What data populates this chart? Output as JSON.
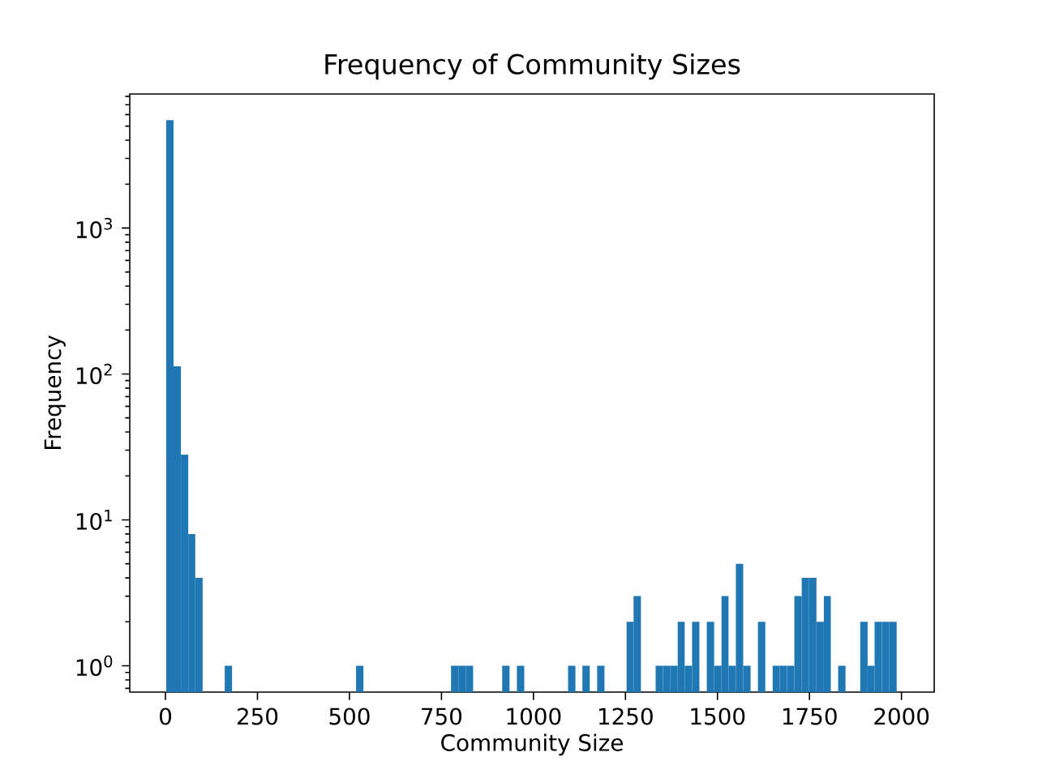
{
  "chart_data": {
    "type": "histogram",
    "title": "Frequency of Community Sizes",
    "xlabel": "Community Size",
    "ylabel": "Frequency",
    "color": "#1f77b4",
    "log": "y",
    "bins": [
      2,
      22,
      42,
      62,
      81,
      101,
      121,
      141,
      161,
      181,
      201,
      220,
      240,
      260,
      280,
      300,
      320,
      339,
      359,
      379,
      399,
      419,
      439,
      459,
      478,
      498,
      518,
      538,
      558,
      578,
      598,
      617,
      637,
      657,
      677,
      697,
      717,
      736,
      756,
      776,
      796,
      816,
      836,
      856,
      875,
      895,
      915,
      935,
      955,
      975,
      995,
      1014,
      1034,
      1054,
      1074,
      1094,
      1114,
      1133,
      1153,
      1173,
      1193,
      1213,
      1233,
      1253,
      1272,
      1292,
      1312,
      1332,
      1352,
      1372,
      1392,
      1411,
      1431,
      1451,
      1471,
      1491,
      1511,
      1530,
      1550,
      1570,
      1590,
      1610,
      1630,
      1650,
      1669,
      1689,
      1709,
      1729,
      1749,
      1769,
      1789,
      1808,
      1828,
      1848,
      1868,
      1888,
      1908,
      1927,
      1947,
      1967,
      1987
    ],
    "values": [
      5500,
      113,
      28,
      8,
      4,
      null,
      null,
      null,
      1,
      null,
      null,
      null,
      null,
      null,
      null,
      null,
      null,
      null,
      null,
      null,
      null,
      null,
      null,
      null,
      null,
      null,
      1,
      null,
      null,
      null,
      null,
      null,
      null,
      null,
      null,
      null,
      null,
      null,
      null,
      1,
      1,
      1,
      null,
      null,
      null,
      null,
      1,
      null,
      1,
      null,
      null,
      null,
      null,
      null,
      null,
      1,
      null,
      1,
      null,
      1,
      null,
      null,
      null,
      2,
      3,
      null,
      null,
      1,
      1,
      1,
      2,
      1,
      2,
      null,
      2,
      1,
      3,
      1,
      5,
      1,
      null,
      2,
      null,
      1,
      1,
      1,
      3,
      4,
      4,
      2,
      3,
      null,
      1,
      null,
      null,
      2,
      1,
      2,
      2,
      2
    ],
    "xlim": [
      -97,
      2089
    ],
    "ylim": [
      0.66,
      8300
    ],
    "xticks": [
      0,
      250,
      500,
      750,
      1000,
      1250,
      1500,
      1750,
      2000
    ],
    "yticks": [
      {
        "value": 1,
        "label": "10$^{0}$"
      },
      {
        "value": 10,
        "label": "10$^{1}$"
      },
      {
        "value": 100,
        "label": "10$^{2}$"
      },
      {
        "value": 1000,
        "label": "10$^{3}$"
      }
    ]
  }
}
